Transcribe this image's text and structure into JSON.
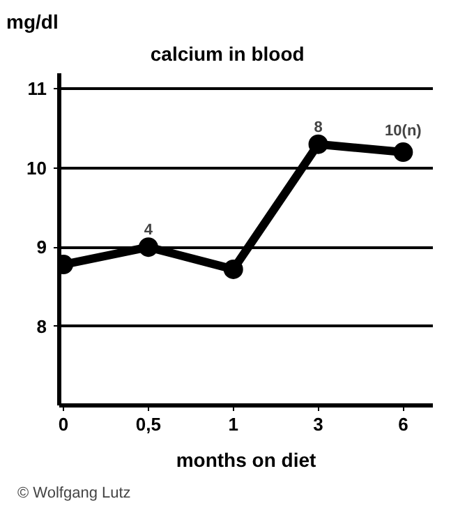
{
  "chart_data": {
    "type": "line",
    "title": "calcium in blood",
    "ylabel": "mg/dl",
    "xlabel": "months on diet",
    "categories": [
      "0",
      "0,5",
      "1",
      "3",
      "6"
    ],
    "series": [
      {
        "color": "#000000",
        "values": [
          8.78,
          9.0,
          8.72,
          10.3,
          10.2
        ]
      }
    ],
    "ylim": [
      7,
      11.2
    ],
    "yticks": [
      8,
      9,
      10,
      11
    ],
    "grid": "y",
    "marker": "circle",
    "line_style": "solid",
    "annotations": [
      {
        "text": "4",
        "x": "0,5",
        "y": 9.0
      },
      {
        "text": "8",
        "x": "3",
        "y": 10.3
      },
      {
        "text": "10(n)",
        "x": "6",
        "y": 10.2
      },
      "© Wolfgang Lutz"
    ]
  }
}
